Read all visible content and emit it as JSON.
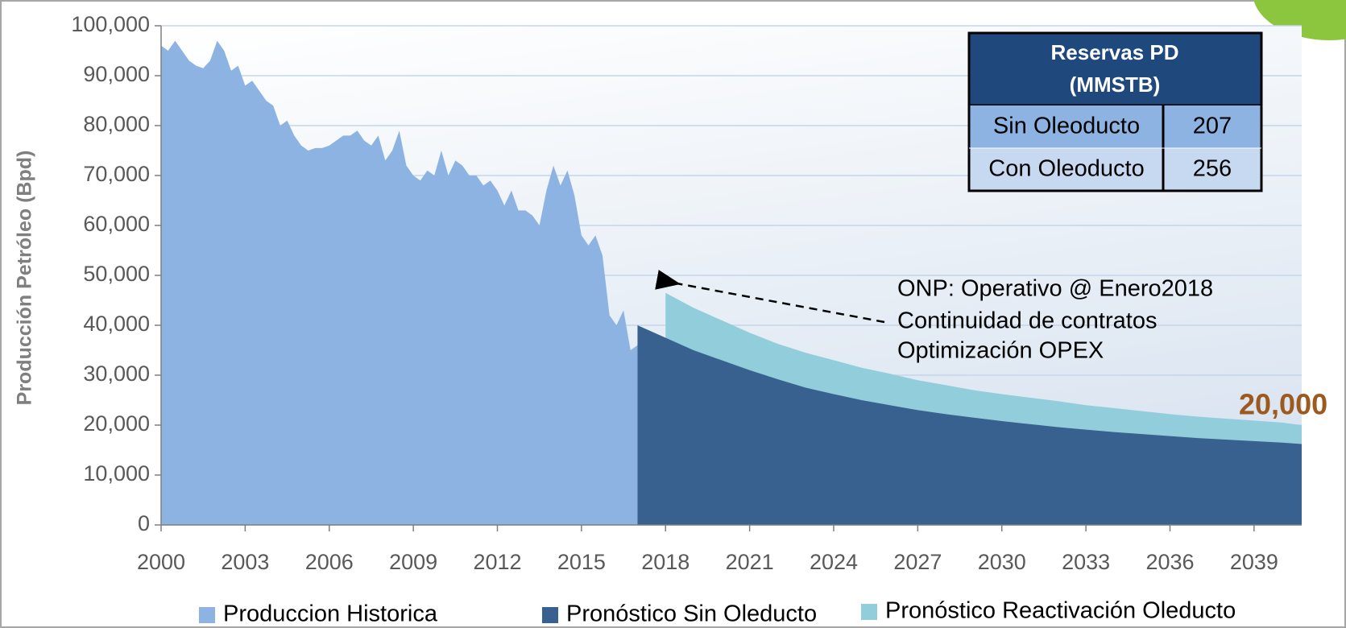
{
  "chart_data": {
    "type": "area",
    "ylabel": "Producción Petróleo (Bpd)",
    "xlim": [
      2000,
      2040.7
    ],
    "xticks": [
      2000,
      2003,
      2006,
      2009,
      2012,
      2015,
      2018,
      2021,
      2024,
      2027,
      2030,
      2033,
      2036,
      2039
    ],
    "ylim": [
      0,
      100000
    ],
    "yticks": [
      0,
      {
        "value": 10000,
        "label": "10,000"
      },
      {
        "value": 20000,
        "label": "20,000"
      },
      {
        "value": 30000,
        "label": "30,000"
      },
      {
        "value": 40000,
        "label": "40,000"
      },
      {
        "value": 50000,
        "label": "50,000"
      },
      {
        "value": 60000,
        "label": "60,000"
      },
      {
        "value": 70000,
        "label": "70,000"
      },
      {
        "value": 80000,
        "label": "80,000"
      },
      {
        "value": 90000,
        "label": "90,000"
      },
      {
        "value": 100000,
        "label": "100,000"
      }
    ],
    "grid": true,
    "series": [
      {
        "name": "Produccion Historica",
        "color": "#8db3e2",
        "x": [
          2000,
          2000.25,
          2000.5,
          2000.75,
          2001,
          2001.25,
          2001.5,
          2001.75,
          2002,
          2002.25,
          2002.5,
          2002.75,
          2003,
          2003.25,
          2003.5,
          2003.75,
          2004,
          2004.25,
          2004.5,
          2004.75,
          2005,
          2005.25,
          2005.5,
          2005.75,
          2006,
          2006.25,
          2006.5,
          2006.75,
          2007,
          2007.25,
          2007.5,
          2007.75,
          2008,
          2008.25,
          2008.5,
          2008.75,
          2009,
          2009.25,
          2009.5,
          2009.75,
          2010,
          2010.25,
          2010.5,
          2010.75,
          2011,
          2011.25,
          2011.5,
          2011.75,
          2012,
          2012.25,
          2012.5,
          2012.75,
          2013,
          2013.25,
          2013.5,
          2013.75,
          2014,
          2014.25,
          2014.5,
          2014.75,
          2015,
          2015.25,
          2015.5,
          2015.75,
          2016,
          2016.25,
          2016.5,
          2016.75,
          2017
        ],
        "values": [
          96000,
          95000,
          97000,
          95000,
          93000,
          92000,
          91500,
          93000,
          97000,
          95000,
          91000,
          92000,
          88000,
          89000,
          87000,
          85000,
          84000,
          80000,
          81000,
          78000,
          76000,
          75000,
          75500,
          75500,
          76000,
          77000,
          78000,
          78000,
          79000,
          77000,
          76000,
          78000,
          73000,
          75000,
          79000,
          72000,
          70000,
          69000,
          71000,
          70000,
          75000,
          70000,
          73000,
          72000,
          70000,
          70000,
          68000,
          69000,
          67000,
          64000,
          67000,
          63000,
          63000,
          62000,
          60000,
          67000,
          72000,
          68000,
          71000,
          66000,
          58000,
          56000,
          58000,
          54000,
          42000,
          40000,
          43000,
          35000,
          36000
        ]
      },
      {
        "name": "Pronóstico Sin Oleducto",
        "color": "#386190",
        "x": [
          2017,
          2018,
          2019,
          2020,
          2021,
          2022,
          2023,
          2024,
          2025,
          2026,
          2027,
          2028,
          2029,
          2030,
          2031,
          2032,
          2033,
          2034,
          2035,
          2036,
          2037,
          2038,
          2039,
          2040,
          2040.7
        ],
        "values": [
          40000,
          37500,
          35000,
          33000,
          31000,
          29200,
          27500,
          26200,
          25000,
          24000,
          23000,
          22200,
          21500,
          20800,
          20200,
          19600,
          19100,
          18600,
          18200,
          17800,
          17400,
          17100,
          16800,
          16500,
          16200
        ]
      },
      {
        "name": "Pronóstico Reactivación Oleducto",
        "color": "#92cddc",
        "x": [
          2018,
          2019,
          2020,
          2021,
          2022,
          2023,
          2024,
          2025,
          2026,
          2027,
          2028,
          2029,
          2030,
          2031,
          2032,
          2033,
          2034,
          2035,
          2036,
          2037,
          2038,
          2039,
          2040,
          2040.7
        ],
        "values": [
          46500,
          43500,
          41000,
          38500,
          36300,
          34500,
          33000,
          31500,
          30300,
          29000,
          28000,
          27000,
          26200,
          25500,
          24800,
          24000,
          23400,
          22800,
          22200,
          21700,
          21300,
          20900,
          20500,
          20000
        ]
      }
    ],
    "draw_order": [
      0,
      2,
      1
    ],
    "annotations": [
      "ONP: Operativo @ Enero2018",
      "Continuidad de contratos",
      "Optimización OPEX"
    ],
    "end_label": "20,000"
  },
  "table": {
    "title": [
      "Reservas PD",
      "(MMSTB)"
    ],
    "rows": [
      [
        "Sin Oleoducto",
        207
      ],
      [
        "Con Oleoducto",
        256
      ]
    ]
  }
}
